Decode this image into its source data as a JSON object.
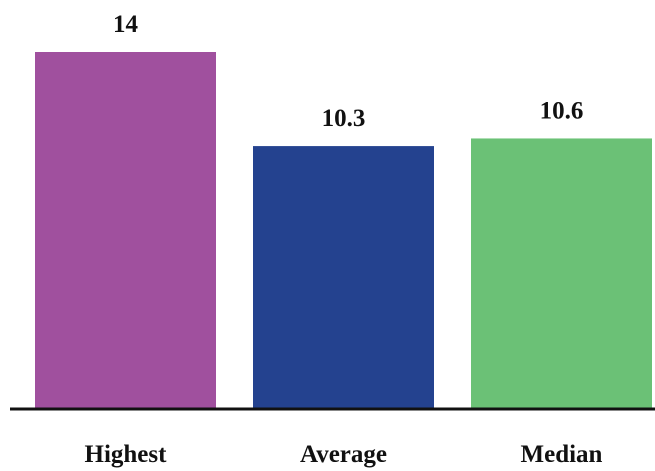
{
  "chart_data": {
    "type": "bar",
    "categories": [
      "Highest",
      "Average",
      "Median"
    ],
    "values": [
      14,
      10.3,
      10.6
    ],
    "value_labels": [
      "14",
      "10.3",
      "10.6"
    ],
    "colors": [
      "#a0509e",
      "#24428f",
      "#6bc176"
    ],
    "ylim": [
      0,
      14
    ],
    "grid": false,
    "legend": "none"
  }
}
